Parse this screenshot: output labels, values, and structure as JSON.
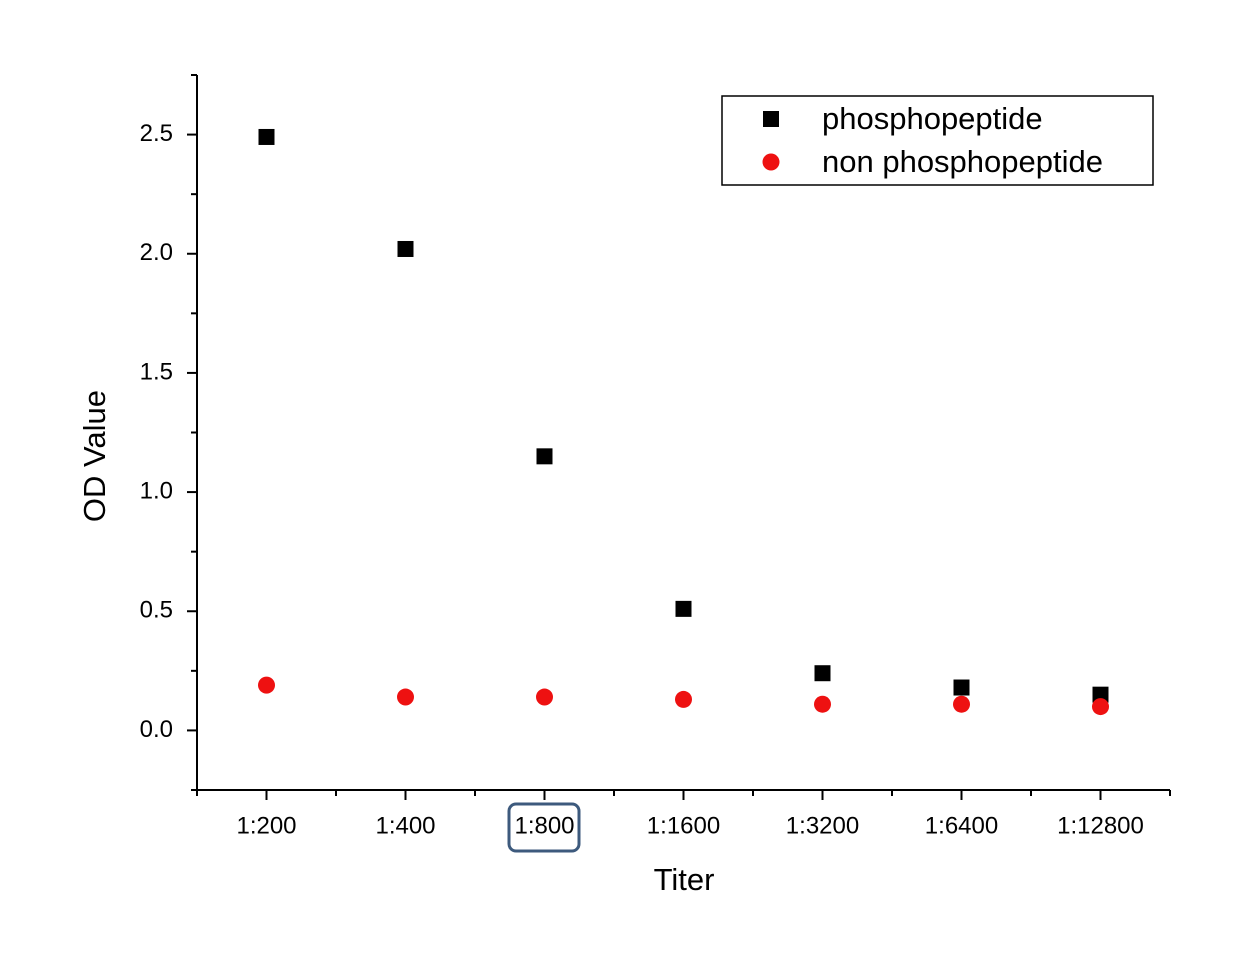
{
  "chart_data": {
    "type": "scatter",
    "x_label": "Titer",
    "y_label": "OD Value",
    "categories": [
      "1:200",
      "1:400",
      "1:800",
      "1:1600",
      "1:3200",
      "1:6400",
      "1:12800"
    ],
    "series": [
      {
        "name": "phosphopeptide",
        "color": "#000000",
        "marker": "square",
        "values": [
          2.49,
          2.02,
          1.15,
          0.51,
          0.24,
          0.18,
          0.15
        ]
      },
      {
        "name": "non phosphopeptide",
        "color": "#ee1111",
        "marker": "circle",
        "values": [
          0.19,
          0.14,
          0.14,
          0.13,
          0.11,
          0.11,
          0.1
        ]
      }
    ],
    "ylim": [
      -0.25,
      2.75
    ],
    "yticks": [
      {
        "value": 0,
        "label": "0.0"
      },
      0.5,
      {
        "value": 1,
        "label": "1.0"
      },
      1.5,
      {
        "value": 2,
        "label": "2.0"
      },
      2.5
    ],
    "yminorticks": [
      -0.25,
      0.25,
      0.75,
      1.25,
      1.75,
      2.25,
      2.75
    ],
    "grid": false,
    "legend": "upper right"
  }
}
